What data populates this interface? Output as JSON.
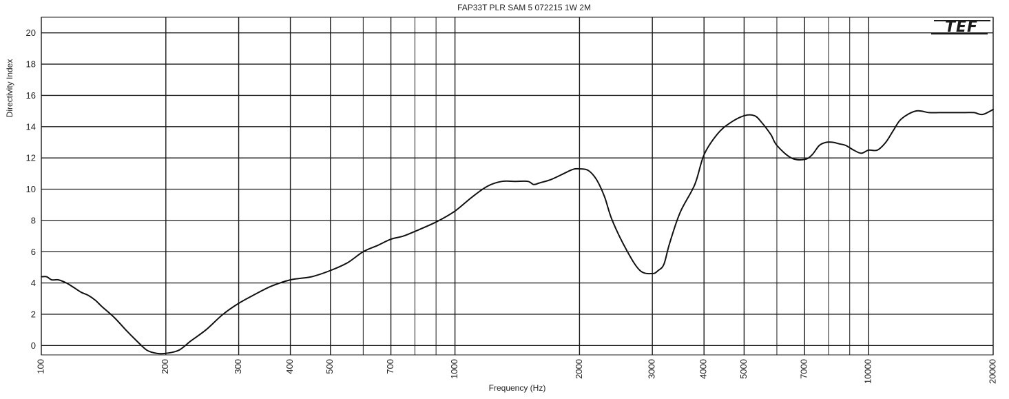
{
  "chart_data": {
    "type": "line",
    "title": "FAP33T PLR SAM 5 072215 1W 2M",
    "xlabel": "Frequency (Hz)",
    "ylabel": "Directivity Index",
    "x_scale": "log",
    "xlim": [
      100,
      20000
    ],
    "ylim": [
      -0.6,
      21
    ],
    "x_ticks": [
      100,
      200,
      300,
      400,
      500,
      700,
      1000,
      2000,
      3000,
      4000,
      5000,
      7000,
      10000,
      20000
    ],
    "x_tick_labels": [
      "100",
      "200",
      "300",
      "400",
      "500",
      "700",
      "1000",
      "2000",
      "3000",
      "4000",
      "5000",
      "7000",
      "10000",
      "20000"
    ],
    "x_minor_gridlines": [
      600,
      800,
      900,
      6000,
      8000,
      9000
    ],
    "y_ticks": [
      0,
      2,
      4,
      6,
      8,
      10,
      12,
      14,
      16,
      18,
      20
    ],
    "y_tick_labels": [
      "0",
      "2",
      "4",
      "6",
      "8",
      "10",
      "12",
      "14",
      "16",
      "18",
      "20"
    ],
    "grid": true,
    "legend": "none",
    "logo": "TEF",
    "colors": {
      "line": "#111111",
      "grid": "#1a1a1a",
      "background": "#ffffff"
    },
    "series": [
      {
        "x": [
          100,
          103,
          106,
          110,
          115,
          120,
          125,
          130,
          135,
          140,
          150,
          160,
          170,
          180,
          190,
          200,
          215,
          230,
          250,
          275,
          300,
          330,
          360,
          400,
          450,
          500,
          550,
          600,
          650,
          700,
          750,
          800,
          900,
          1000,
          1100,
          1200,
          1300,
          1400,
          1500,
          1550,
          1600,
          1700,
          1800,
          1900,
          1950,
          2000,
          2100,
          2200,
          2300,
          2400,
          2600,
          2800,
          3000,
          3100,
          3200,
          3300,
          3500,
          3800,
          4000,
          4300,
          4600,
          5000,
          5300,
          5500,
          5800,
          6000,
          6500,
          7000,
          7300,
          7600,
          7900,
          8200,
          8500,
          8800,
          9200,
          9600,
          10000,
          10500,
          11000,
          11500,
          12000,
          13000,
          14000,
          14800,
          15500,
          17000,
          18000,
          18500,
          19000,
          20000
        ],
        "y": [
          4.4,
          4.4,
          4.2,
          4.2,
          4.0,
          3.7,
          3.4,
          3.2,
          2.9,
          2.5,
          1.8,
          1.0,
          0.3,
          -0.3,
          -0.5,
          -0.5,
          -0.3,
          0.3,
          1.0,
          2.0,
          2.7,
          3.3,
          3.8,
          4.2,
          4.4,
          4.8,
          5.3,
          6.0,
          6.4,
          6.8,
          7.0,
          7.3,
          7.9,
          8.6,
          9.5,
          10.2,
          10.5,
          10.5,
          10.5,
          10.3,
          10.4,
          10.6,
          10.9,
          11.2,
          11.3,
          11.3,
          11.2,
          10.6,
          9.5,
          8.0,
          6.1,
          4.8,
          4.6,
          4.8,
          5.2,
          6.5,
          8.5,
          10.3,
          12.2,
          13.5,
          14.2,
          14.7,
          14.7,
          14.3,
          13.5,
          12.8,
          12.0,
          11.9,
          12.2,
          12.8,
          13.0,
          13.0,
          12.9,
          12.8,
          12.5,
          12.3,
          12.5,
          12.5,
          13.0,
          13.8,
          14.5,
          15.0,
          14.9,
          14.9,
          14.9,
          14.9,
          14.9,
          14.8,
          14.8,
          15.1
        ]
      }
    ]
  }
}
